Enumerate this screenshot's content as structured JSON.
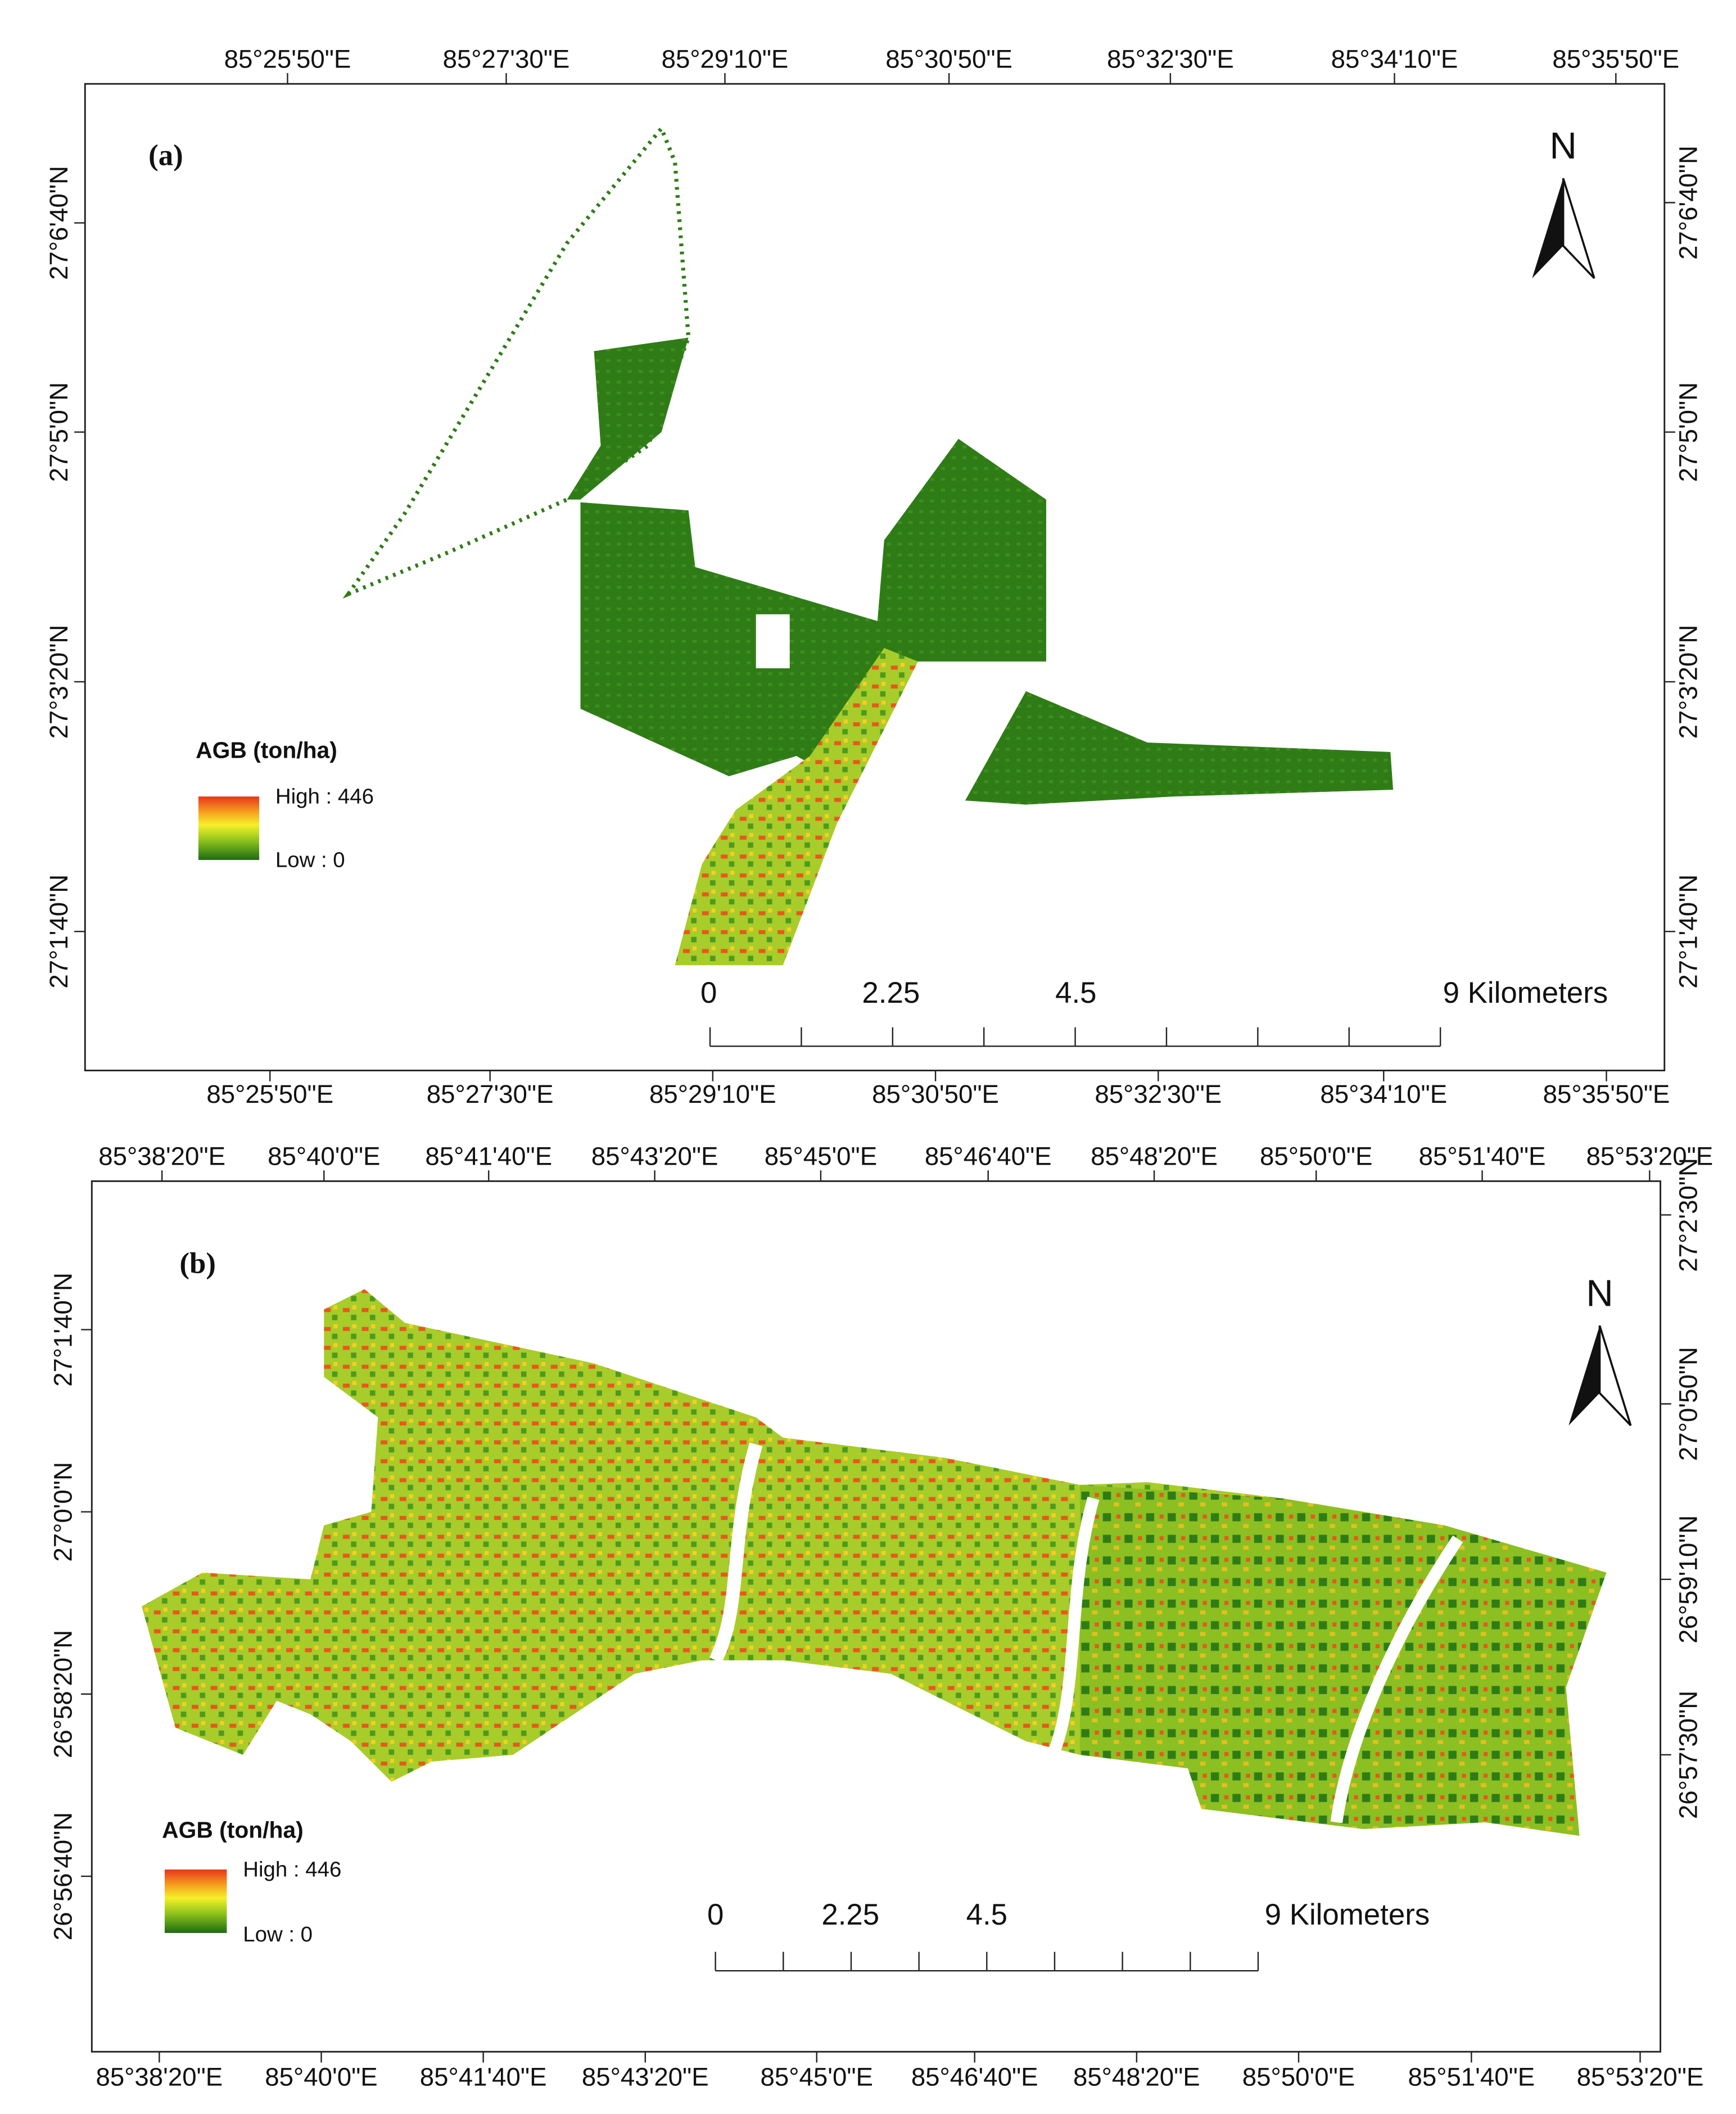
{
  "panels": [
    {
      "label": "(a)",
      "top_ticks": [
        "85°25'50\"E",
        "85°27'30\"E",
        "85°29'10\"E",
        "85°30'50\"E",
        "85°32'30\"E",
        "85°34'10\"E",
        "85°35'50\"E"
      ],
      "bottom_ticks": [
        "85°25'50\"E",
        "85°27'30\"E",
        "85°29'10\"E",
        "85°30'50\"E",
        "85°32'30\"E",
        "85°34'10\"E",
        "85°35'50\"E"
      ],
      "left_ticks": [
        "27°6'40\"N",
        "27°5'0\"N",
        "27°3'20\"N",
        "27°1'40\"N"
      ],
      "right_ticks": [
        "27°6'40\"N",
        "27°5'0\"N",
        "27°3'20\"N",
        "27°1'40\"N"
      ],
      "north": "N",
      "legend": {
        "title": "AGB (ton/ha)",
        "high": "High : 446",
        "low": "Low : 0"
      },
      "scale": [
        "0",
        "2.25",
        "4.5",
        "9 Kilometers"
      ]
    },
    {
      "label": "(b)",
      "top_ticks": [
        "85°38'20\"E",
        "85°40'0\"E",
        "85°41'40\"E",
        "85°43'20\"E",
        "85°45'0\"E",
        "85°46'40\"E",
        "85°48'20\"E",
        "85°50'0\"E",
        "85°51'40\"E",
        "85°53'20\"E"
      ],
      "bottom_ticks": [
        "85°38'20\"E",
        "85°40'0\"E",
        "85°41'40\"E",
        "85°43'20\"E",
        "85°45'0\"E",
        "85°46'40\"E",
        "85°48'20\"E",
        "85°50'0\"E",
        "85°51'40\"E",
        "85°53'20\"E"
      ],
      "left_ticks": [
        "27°1'40\"N",
        "27°0'0\"N",
        "26°58'20\"N",
        "26°56'40\"N"
      ],
      "right_ticks": [
        "27°2'30\"N",
        "27°0'50\"N",
        "26°59'10\"N",
        "26°57'30\"N"
      ],
      "north": "N",
      "legend": {
        "title": "AGB (ton/ha)",
        "high": "High : 446",
        "low": "Low : 0"
      },
      "scale": [
        "0",
        "2.25",
        "4.5",
        "9 Kilometers"
      ]
    }
  ]
}
